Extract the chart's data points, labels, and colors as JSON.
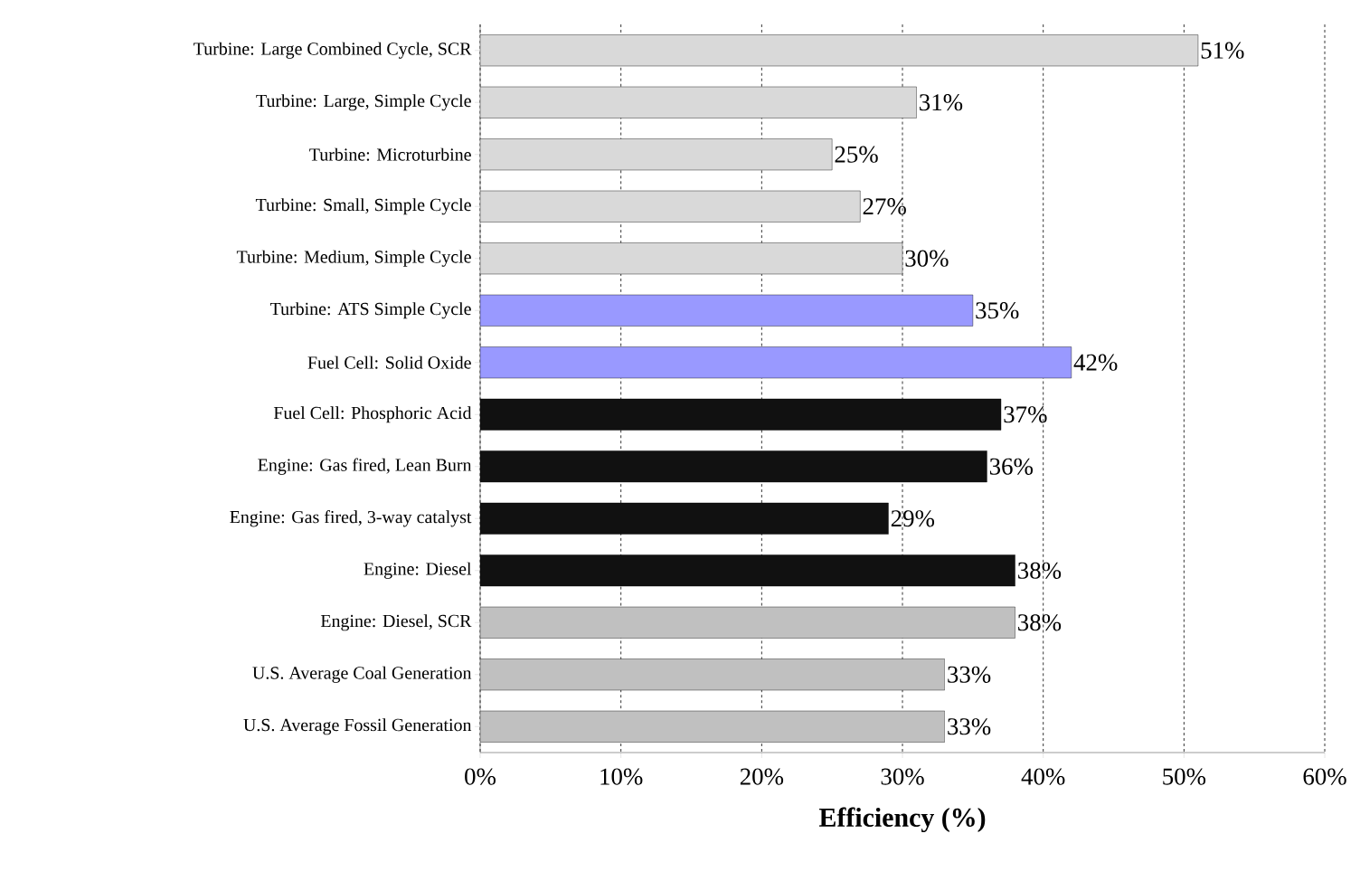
{
  "chart_data": {
    "type": "bar",
    "orientation": "horizontal",
    "xlabel": "**Efficiency (%)**",
    "categories": [
      "Turbine: Large Combined Cycle, SCR",
      "Turbine: Large, Simple Cycle",
      "Turbine: Microturbine",
      "Turbine: Small, Simple Cycle",
      "Turbine: Medium, Simple Cycle",
      "Turbine: ATS Simple Cycle",
      "Fuel Cell: Solid Oxide",
      "Fuel Cell: Phosphoric Acid",
      "Engine: Gas fired, Lean Burn",
      "Engine: Gas fired, 3-way catalyst",
      "Engine: Diesel",
      "Engine: Diesel, SCR",
      "U.S. Average Coal Generation",
      "U.S. Average Fossil Generation"
    ],
    "values": [
      51,
      31,
      25,
      27,
      30,
      35,
      42,
      37,
      36,
      29,
      38,
      38,
      33,
      33
    ],
    "value_labels": [
      "51%",
      "31%",
      "25%",
      "27%",
      "30%",
      "35%",
      "42%",
      "37%",
      "36%",
      "29%",
      "38%",
      "38%",
      "33%",
      "33%"
    ],
    "colors": [
      "#d9d9d9",
      "#d9d9d9",
      "#d9d9d9",
      "#d9d9d9",
      "#d9d9d9",
      "#9999ff",
      "#9999ff",
      "#111111",
      "#111111",
      "#111111",
      "#111111",
      "#c0c0c0",
      "#c0c0c0",
      "#c0c0c0"
    ],
    "xlim": [
      0,
      60
    ],
    "xticks": [
      {
        "value": 0,
        "label": "0%"
      },
      {
        "value": 10,
        "label": "10%"
      },
      {
        "value": 20,
        "label": "20%"
      },
      {
        "value": 30,
        "label": "30%"
      },
      {
        "value": 40,
        "label": "40%"
      },
      {
        "value": 50,
        "label": "50%"
      },
      {
        "value": 60,
        "label": "60%"
      }
    ],
    "grid": "x"
  }
}
